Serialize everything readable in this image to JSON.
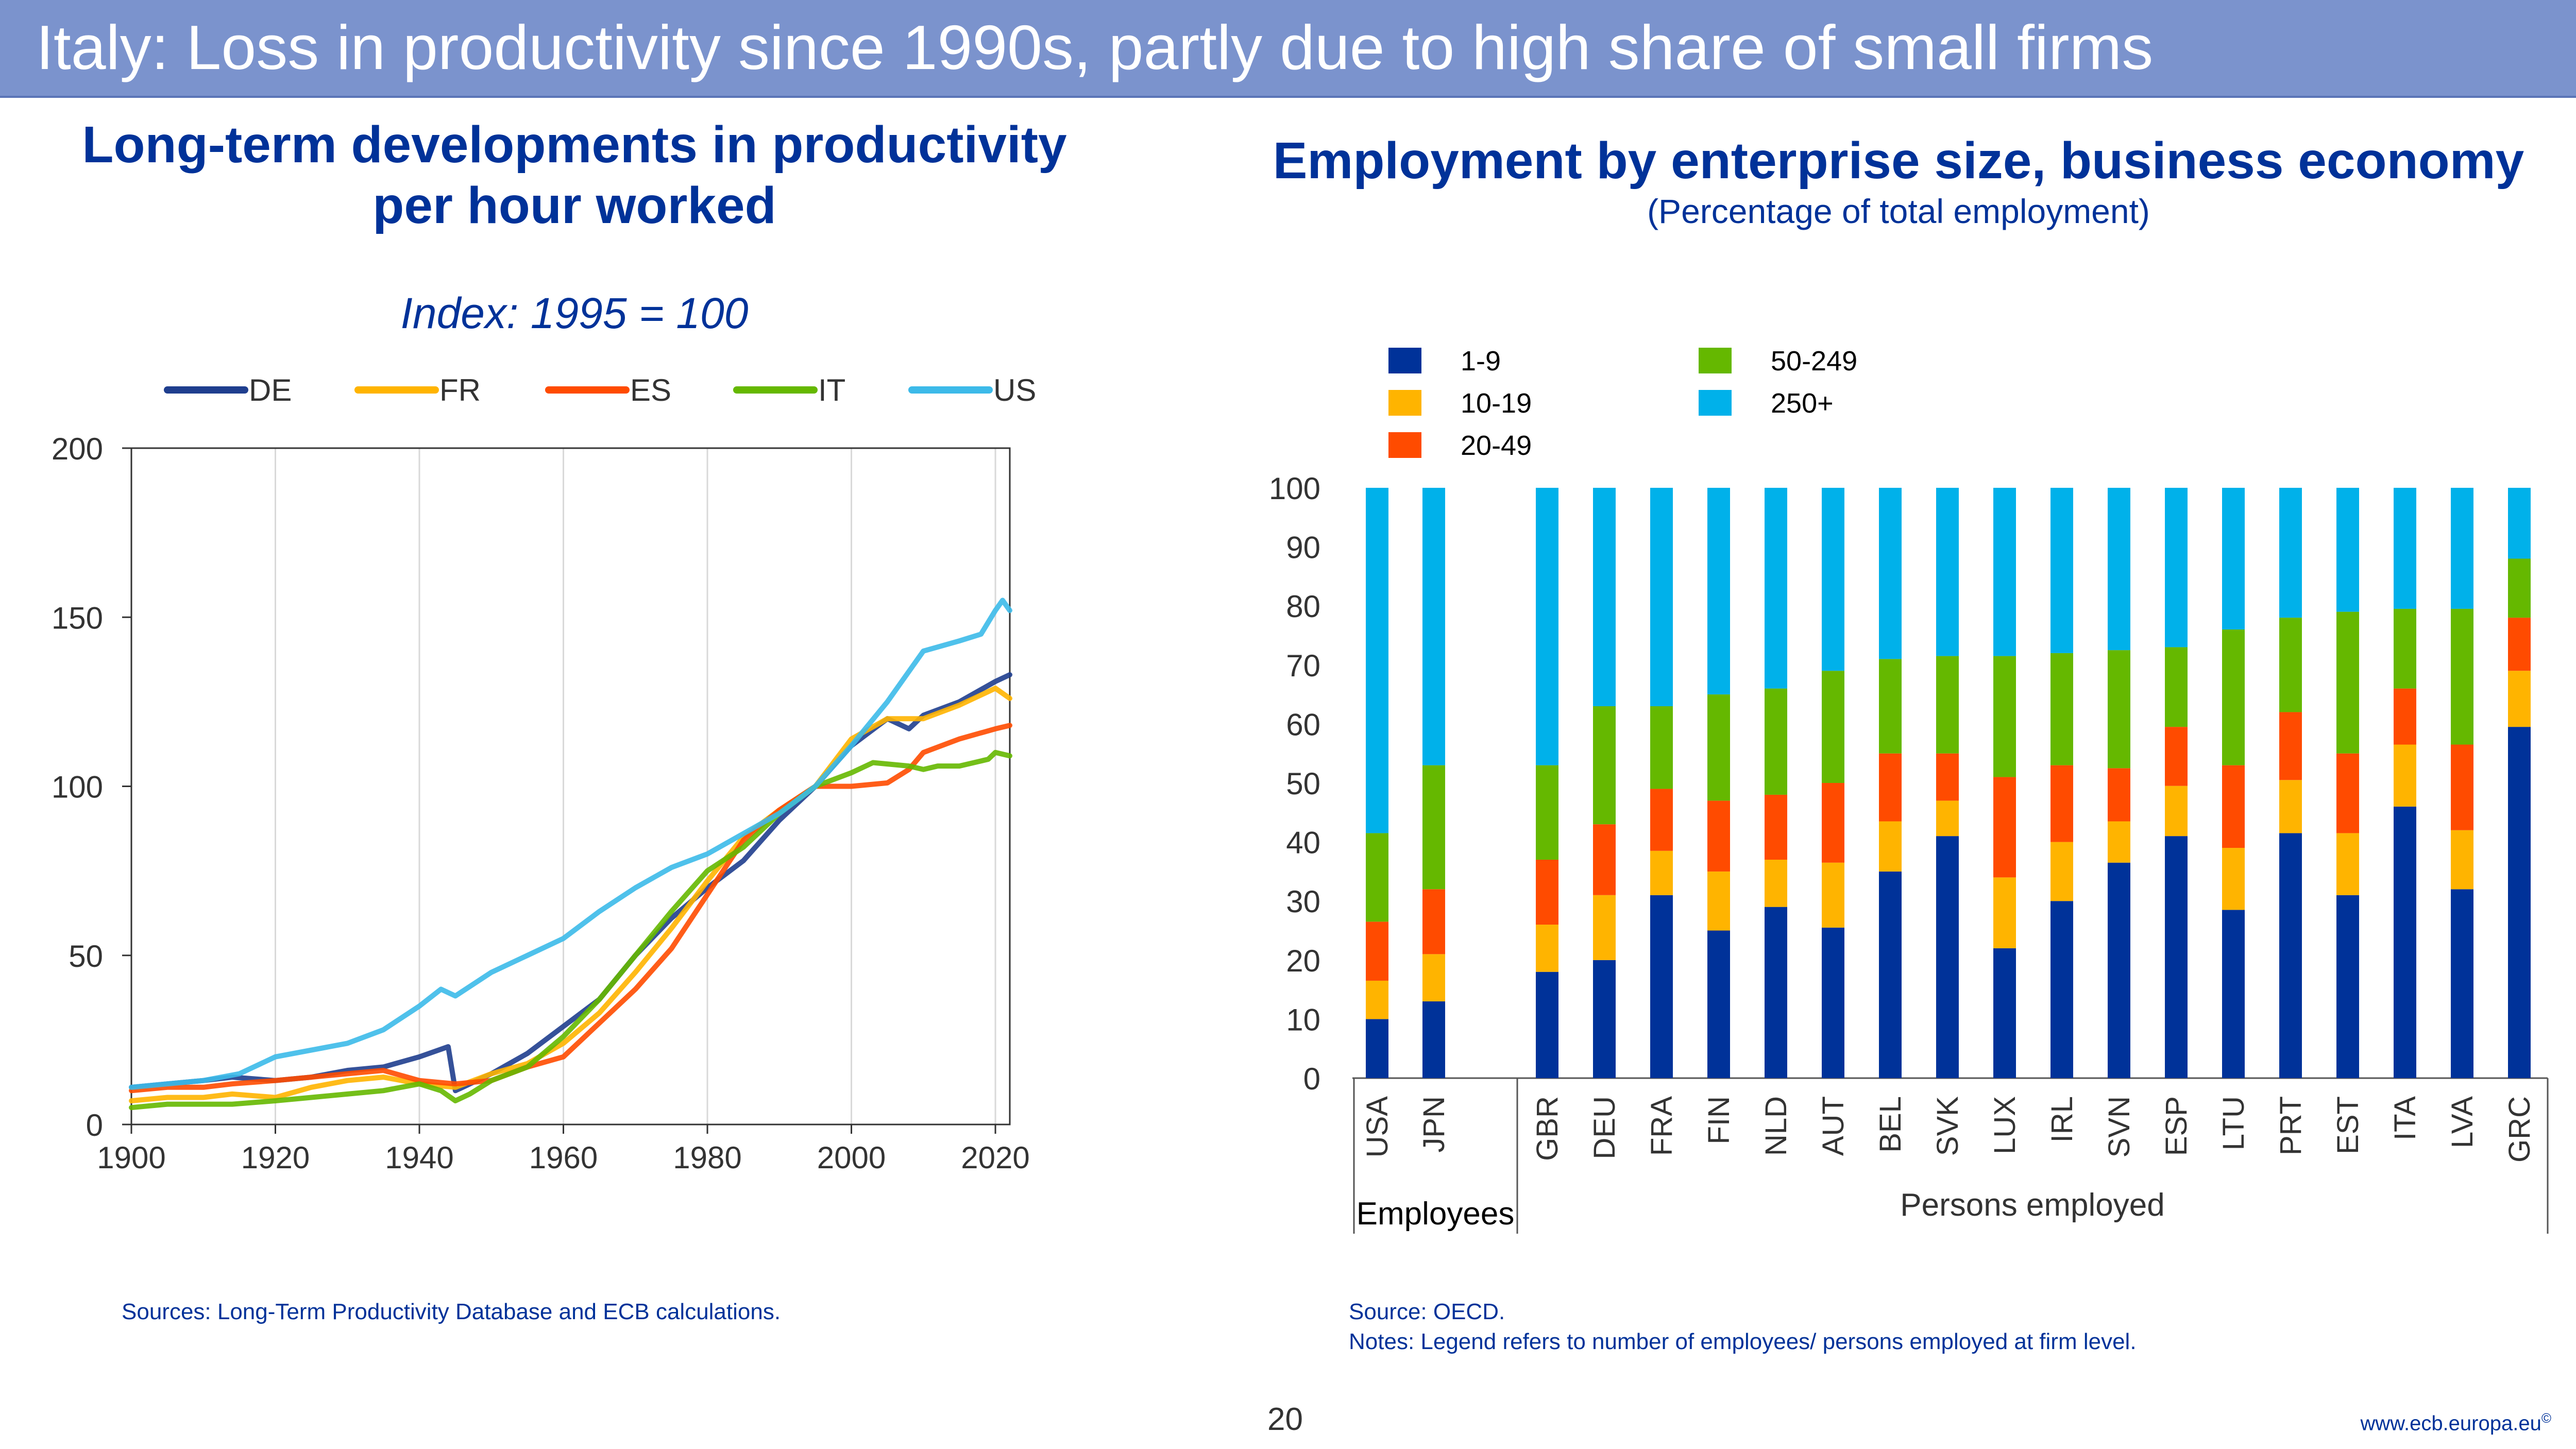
{
  "slide": {
    "title": "Italy: Loss in productivity since 1990s, partly due to high share of small firms",
    "page_number": "20",
    "url": "www.ecb.europa.eu",
    "url_mark": "©"
  },
  "left_panel": {
    "title_line1": "Long-term developments in productivity",
    "title_line2": "per hour worked",
    "subtitle": "Index: 1995 = 100",
    "source": "Sources: Long-Term Productivity Database and ECB calculations."
  },
  "right_panel": {
    "title": "Employment by enterprise size, business economy",
    "subtitle": "(Percentage of total employment)",
    "source": "Source: OECD.",
    "notes": "Notes: Legend refers to number of employees/ persons employed at firm level."
  },
  "chart_data": [
    {
      "type": "line",
      "title": "Long-term developments in productivity per hour worked",
      "subtitle": "Index: 1995 = 100",
      "xlim": [
        1900,
        2022
      ],
      "ylim": [
        0,
        200
      ],
      "xticks": [
        1900,
        1920,
        1940,
        1960,
        1980,
        2000,
        2020
      ],
      "yticks": [
        0,
        50,
        100,
        150,
        200
      ],
      "grid": "vertical",
      "legend_position": "top",
      "series": [
        {
          "name": "DE",
          "color": "#1f3e8e",
          "points": [
            [
              1900,
              11
            ],
            [
              1905,
              12
            ],
            [
              1910,
              13
            ],
            [
              1914,
              14
            ],
            [
              1920,
              13
            ],
            [
              1925,
              14
            ],
            [
              1930,
              16
            ],
            [
              1935,
              17
            ],
            [
              1940,
              20
            ],
            [
              1944,
              23
            ],
            [
              1945,
              10
            ],
            [
              1946,
              11
            ],
            [
              1950,
              15
            ],
            [
              1955,
              21
            ],
            [
              1960,
              29
            ],
            [
              1965,
              37
            ],
            [
              1970,
              50
            ],
            [
              1975,
              61
            ],
            [
              1980,
              70
            ],
            [
              1985,
              78
            ],
            [
              1990,
              90
            ],
            [
              1995,
              100
            ],
            [
              2000,
              112
            ],
            [
              2005,
              120
            ],
            [
              2008,
              117
            ],
            [
              2010,
              121
            ],
            [
              2015,
              125
            ],
            [
              2020,
              131
            ],
            [
              2022,
              133
            ]
          ]
        },
        {
          "name": "FR",
          "color": "#ffb400",
          "points": [
            [
              1900,
              7
            ],
            [
              1905,
              8
            ],
            [
              1910,
              8
            ],
            [
              1914,
              9
            ],
            [
              1920,
              8
            ],
            [
              1925,
              11
            ],
            [
              1930,
              13
            ],
            [
              1935,
              14
            ],
            [
              1940,
              12
            ],
            [
              1945,
              11
            ],
            [
              1950,
              15
            ],
            [
              1955,
              18
            ],
            [
              1960,
              24
            ],
            [
              1965,
              33
            ],
            [
              1970,
              45
            ],
            [
              1975,
              58
            ],
            [
              1980,
              72
            ],
            [
              1985,
              85
            ],
            [
              1990,
              93
            ],
            [
              1995,
              100
            ],
            [
              2000,
              114
            ],
            [
              2005,
              120
            ],
            [
              2008,
              120
            ],
            [
              2010,
              120
            ],
            [
              2015,
              124
            ],
            [
              2019,
              128
            ],
            [
              2020,
              129
            ],
            [
              2022,
              126
            ]
          ]
        },
        {
          "name": "ES",
          "color": "#ff4b00",
          "points": [
            [
              1900,
              10
            ],
            [
              1905,
              11
            ],
            [
              1910,
              11
            ],
            [
              1914,
              12
            ],
            [
              1920,
              13
            ],
            [
              1925,
              14
            ],
            [
              1930,
              15
            ],
            [
              1935,
              16
            ],
            [
              1940,
              13
            ],
            [
              1945,
              12
            ],
            [
              1950,
              13
            ],
            [
              1955,
              17
            ],
            [
              1960,
              20
            ],
            [
              1965,
              30
            ],
            [
              1970,
              40
            ],
            [
              1975,
              52
            ],
            [
              1980,
              68
            ],
            [
              1985,
              84
            ],
            [
              1990,
              93
            ],
            [
              1995,
              100
            ],
            [
              2000,
              100
            ],
            [
              2005,
              101
            ],
            [
              2008,
              105
            ],
            [
              2010,
              110
            ],
            [
              2015,
              114
            ],
            [
              2020,
              117
            ],
            [
              2022,
              118
            ]
          ]
        },
        {
          "name": "IT",
          "color": "#65b800",
          "points": [
            [
              1900,
              5
            ],
            [
              1905,
              6
            ],
            [
              1910,
              6
            ],
            [
              1914,
              6
            ],
            [
              1920,
              7
            ],
            [
              1925,
              8
            ],
            [
              1930,
              9
            ],
            [
              1935,
              10
            ],
            [
              1940,
              12
            ],
            [
              1943,
              10
            ],
            [
              1945,
              7
            ],
            [
              1947,
              9
            ],
            [
              1950,
              13
            ],
            [
              1955,
              17
            ],
            [
              1960,
              26
            ],
            [
              1965,
              37
            ],
            [
              1970,
              50
            ],
            [
              1975,
              63
            ],
            [
              1980,
              75
            ],
            [
              1985,
              82
            ],
            [
              1990,
              92
            ],
            [
              1995,
              100
            ],
            [
              2000,
              104
            ],
            [
              2003,
              107
            ],
            [
              2008,
              106
            ],
            [
              2010,
              105
            ],
            [
              2012,
              106
            ],
            [
              2015,
              106
            ],
            [
              2019,
              108
            ],
            [
              2020,
              110
            ],
            [
              2022,
              109
            ]
          ]
        },
        {
          "name": "US",
          "color": "#3cbae9",
          "points": [
            [
              1900,
              11
            ],
            [
              1905,
              12
            ],
            [
              1910,
              13
            ],
            [
              1915,
              15
            ],
            [
              1920,
              20
            ],
            [
              1925,
              22
            ],
            [
              1930,
              24
            ],
            [
              1935,
              28
            ],
            [
              1940,
              35
            ],
            [
              1943,
              40
            ],
            [
              1945,
              38
            ],
            [
              1950,
              45
            ],
            [
              1955,
              50
            ],
            [
              1960,
              55
            ],
            [
              1965,
              63
            ],
            [
              1970,
              70
            ],
            [
              1975,
              76
            ],
            [
              1980,
              80
            ],
            [
              1985,
              86
            ],
            [
              1990,
              92
            ],
            [
              1995,
              100
            ],
            [
              2000,
              112
            ],
            [
              2005,
              125
            ],
            [
              2010,
              140
            ],
            [
              2015,
              143
            ],
            [
              2018,
              145
            ],
            [
              2020,
              152
            ],
            [
              2021,
              155
            ],
            [
              2022,
              152
            ]
          ]
        }
      ]
    },
    {
      "type": "bar",
      "stacked": true,
      "title": "Employment by enterprise size, business economy",
      "subtitle": "(Percentage of total employment)",
      "ylim": [
        0,
        100
      ],
      "yticks": [
        0,
        10,
        20,
        30,
        40,
        50,
        60,
        70,
        80,
        90,
        100
      ],
      "legend_position": "top-left",
      "categories": [
        "USA",
        "JPN",
        "GBR",
        "DEU",
        "FRA",
        "FIN",
        "NLD",
        "AUT",
        "BEL",
        "SVK",
        "LUX",
        "IRL",
        "SVN",
        "ESP",
        "LTU",
        "PRT",
        "EST",
        "ITA",
        "LVA",
        "GRC"
      ],
      "groups": [
        {
          "label": "Employees",
          "categories": [
            "USA",
            "JPN"
          ]
        },
        {
          "label": "Persons employed",
          "categories": [
            "GBR",
            "DEU",
            "FRA",
            "FIN",
            "NLD",
            "AUT",
            "BEL",
            "SVK",
            "LUX",
            "IRL",
            "SVN",
            "ESP",
            "LTU",
            "PRT",
            "EST",
            "ITA",
            "LVA",
            "GRC"
          ]
        }
      ],
      "series": [
        {
          "name": "1-9",
          "color": "#003299",
          "values": [
            10,
            13,
            18,
            20,
            31,
            25,
            29,
            25.5,
            35,
            41,
            22,
            30,
            36.5,
            41,
            28.5,
            41.5,
            31,
            46,
            32,
            59.5
          ]
        },
        {
          "name": "10-19",
          "color": "#ffb400",
          "values": [
            6.5,
            8,
            8,
            11,
            7.5,
            10,
            8,
            11,
            8.5,
            6,
            12,
            10,
            7,
            8.5,
            10.5,
            9,
            10.5,
            10.5,
            10,
            9.5
          ]
        },
        {
          "name": "20-49",
          "color": "#ff4b00",
          "values": [
            10,
            11,
            11,
            12,
            10.5,
            12,
            11,
            13.5,
            11.5,
            8,
            17,
            13,
            9,
            10,
            14,
            11.5,
            13.5,
            9.5,
            14.5,
            9
          ]
        },
        {
          "name": "50-249",
          "color": "#65b800",
          "values": [
            15,
            21,
            16,
            20,
            14,
            18,
            18,
            19,
            16,
            16.5,
            20.5,
            19,
            20,
            13.5,
            23,
            16,
            24,
            13.5,
            23,
            10
          ]
        },
        {
          "name": "250+",
          "color": "#00b1ea",
          "values": [
            58.5,
            47,
            47,
            37,
            37,
            35,
            34,
            31,
            29,
            28.5,
            28.5,
            28,
            27.5,
            27,
            24,
            22,
            21,
            20.5,
            20.5,
            12
          ]
        }
      ]
    }
  ]
}
